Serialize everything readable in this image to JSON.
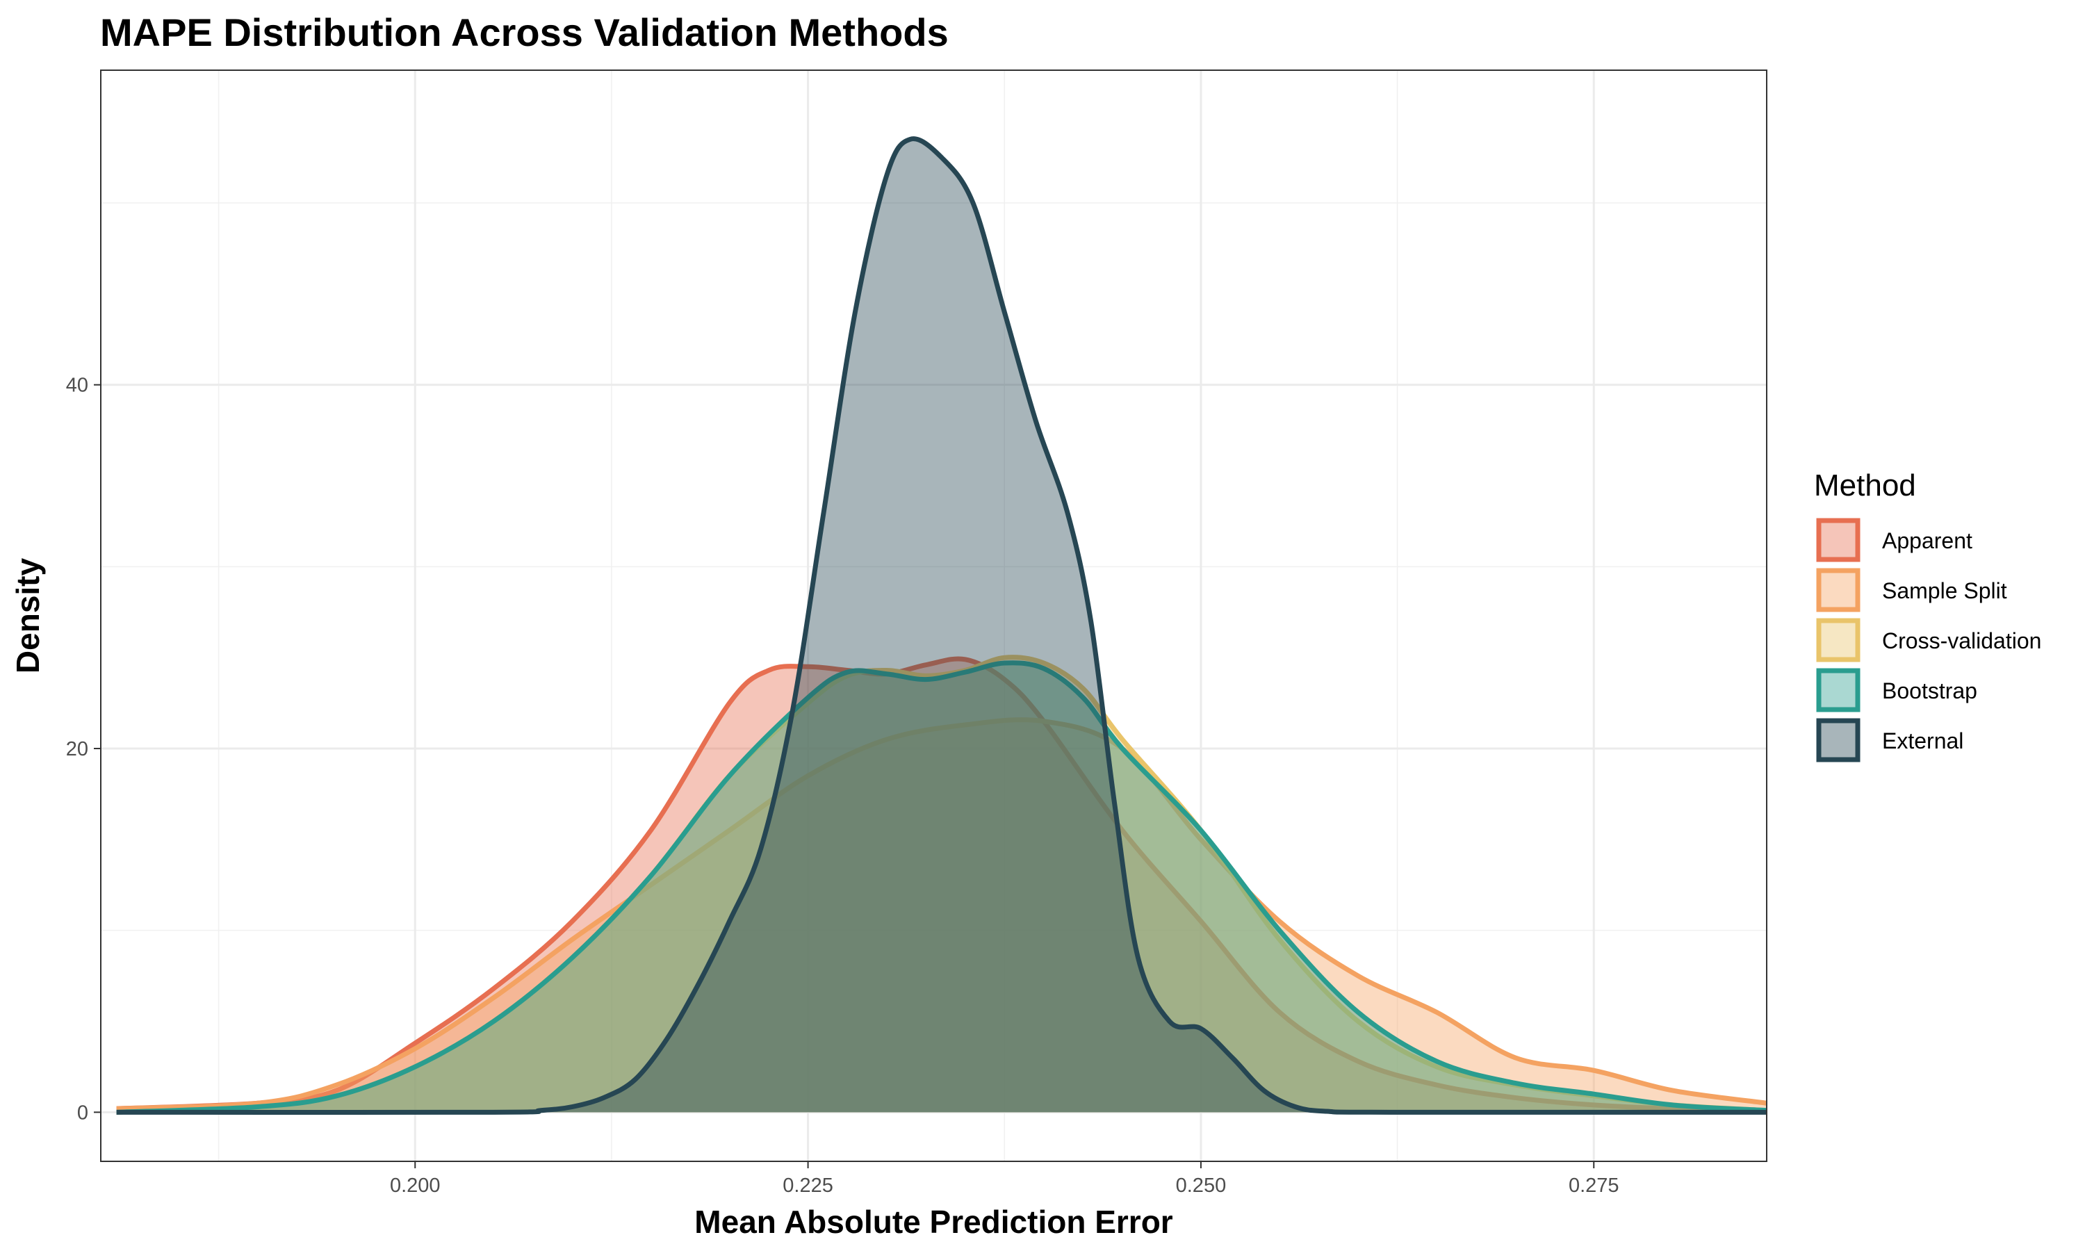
{
  "chart_data": {
    "type": "area",
    "title": "MAPE Distribution Across Validation Methods",
    "xlabel": "Mean Absolute Prediction Error",
    "ylabel": "Density",
    "xlim": [
      0.18,
      0.286
    ],
    "ylim": [
      -2.7,
      57.3
    ],
    "x_ticks": [
      0.2,
      0.225,
      0.25,
      0.275
    ],
    "x_tick_labels": [
      "0.200",
      "0.225",
      "0.250",
      "0.275"
    ],
    "y_ticks": [
      0,
      20,
      40
    ],
    "y_tick_labels": [
      "0",
      "20",
      "40"
    ],
    "grid": true,
    "legend": {
      "title": "Method",
      "position": "right"
    },
    "series": [
      {
        "name": "Apparent",
        "color": "#E76F51",
        "points": [
          [
            0.181,
            0.2
          ],
          [
            0.19,
            0.5
          ],
          [
            0.195,
            1.2
          ],
          [
            0.2,
            3.8
          ],
          [
            0.205,
            6.8
          ],
          [
            0.21,
            10.5
          ],
          [
            0.215,
            15.5
          ],
          [
            0.22,
            22.5
          ],
          [
            0.2225,
            24.3
          ],
          [
            0.225,
            24.5
          ],
          [
            0.2275,
            24.3
          ],
          [
            0.23,
            24.1
          ],
          [
            0.2325,
            24.6
          ],
          [
            0.235,
            24.9
          ],
          [
            0.2375,
            23.8
          ],
          [
            0.24,
            21.5
          ],
          [
            0.245,
            15.5
          ],
          [
            0.25,
            10.5
          ],
          [
            0.255,
            5.5
          ],
          [
            0.26,
            2.8
          ],
          [
            0.265,
            1.5
          ],
          [
            0.27,
            0.8
          ],
          [
            0.275,
            0.4
          ],
          [
            0.28,
            0.2
          ],
          [
            0.286,
            0.1
          ]
        ]
      },
      {
        "name": "Sample Split",
        "color": "#F4A261",
        "points": [
          [
            0.181,
            0.2
          ],
          [
            0.19,
            0.5
          ],
          [
            0.195,
            1.5
          ],
          [
            0.2,
            3.5
          ],
          [
            0.205,
            6.3
          ],
          [
            0.21,
            9.5
          ],
          [
            0.215,
            12.5
          ],
          [
            0.22,
            15.5
          ],
          [
            0.225,
            18.5
          ],
          [
            0.23,
            20.5
          ],
          [
            0.235,
            21.3
          ],
          [
            0.24,
            21.5
          ],
          [
            0.245,
            20.0
          ],
          [
            0.25,
            15.0
          ],
          [
            0.255,
            10.5
          ],
          [
            0.26,
            7.5
          ],
          [
            0.265,
            5.5
          ],
          [
            0.27,
            3.0
          ],
          [
            0.275,
            2.3
          ],
          [
            0.28,
            1.2
          ],
          [
            0.286,
            0.5
          ]
        ]
      },
      {
        "name": "Cross-validation",
        "color": "#E9C46A",
        "points": [
          [
            0.181,
            0.0
          ],
          [
            0.19,
            0.3
          ],
          [
            0.195,
            0.9
          ],
          [
            0.2,
            2.5
          ],
          [
            0.205,
            5.0
          ],
          [
            0.21,
            8.5
          ],
          [
            0.215,
            13.0
          ],
          [
            0.22,
            18.5
          ],
          [
            0.225,
            22.5
          ],
          [
            0.2275,
            24.0
          ],
          [
            0.23,
            24.3
          ],
          [
            0.2325,
            24.0
          ],
          [
            0.235,
            24.3
          ],
          [
            0.2375,
            25.0
          ],
          [
            0.24,
            24.7
          ],
          [
            0.2425,
            23.3
          ],
          [
            0.245,
            20.5
          ],
          [
            0.25,
            15.5
          ],
          [
            0.255,
            9.5
          ],
          [
            0.26,
            5.0
          ],
          [
            0.265,
            2.5
          ],
          [
            0.27,
            1.5
          ],
          [
            0.275,
            0.9
          ],
          [
            0.28,
            0.4
          ],
          [
            0.286,
            0.1
          ]
        ]
      },
      {
        "name": "Bootstrap",
        "color": "#2A9D8F",
        "points": [
          [
            0.181,
            0.0
          ],
          [
            0.19,
            0.3
          ],
          [
            0.195,
            0.9
          ],
          [
            0.2,
            2.5
          ],
          [
            0.205,
            5.0
          ],
          [
            0.21,
            8.5
          ],
          [
            0.215,
            13.0
          ],
          [
            0.22,
            18.5
          ],
          [
            0.225,
            22.8
          ],
          [
            0.2275,
            24.2
          ],
          [
            0.23,
            24.1
          ],
          [
            0.2325,
            23.8
          ],
          [
            0.235,
            24.2
          ],
          [
            0.2375,
            24.7
          ],
          [
            0.24,
            24.4
          ],
          [
            0.2425,
            22.8
          ],
          [
            0.245,
            20.0
          ],
          [
            0.25,
            15.5
          ],
          [
            0.255,
            10.0
          ],
          [
            0.26,
            5.5
          ],
          [
            0.265,
            2.8
          ],
          [
            0.27,
            1.6
          ],
          [
            0.275,
            1.0
          ],
          [
            0.28,
            0.4
          ],
          [
            0.286,
            0.1
          ]
        ]
      },
      {
        "name": "External",
        "color": "#264653",
        "points": [
          [
            0.181,
            0.0
          ],
          [
            0.205,
            0.0
          ],
          [
            0.208,
            0.1
          ],
          [
            0.21,
            0.3
          ],
          [
            0.212,
            0.8
          ],
          [
            0.214,
            1.8
          ],
          [
            0.216,
            4.0
          ],
          [
            0.218,
            7.0
          ],
          [
            0.22,
            10.5
          ],
          [
            0.222,
            14.5
          ],
          [
            0.224,
            22.0
          ],
          [
            0.226,
            33.0
          ],
          [
            0.228,
            44.0
          ],
          [
            0.23,
            51.5
          ],
          [
            0.2315,
            53.5
          ],
          [
            0.2335,
            52.5
          ],
          [
            0.2355,
            50.0
          ],
          [
            0.2375,
            44.0
          ],
          [
            0.2395,
            38.0
          ],
          [
            0.2415,
            33.0
          ],
          [
            0.243,
            27.0
          ],
          [
            0.2445,
            17.0
          ],
          [
            0.246,
            8.5
          ],
          [
            0.248,
            5.0
          ],
          [
            0.25,
            4.6
          ],
          [
            0.252,
            3.0
          ],
          [
            0.254,
            1.2
          ],
          [
            0.256,
            0.3
          ],
          [
            0.258,
            0.05
          ],
          [
            0.262,
            0.0
          ],
          [
            0.286,
            0.0
          ]
        ]
      }
    ]
  }
}
